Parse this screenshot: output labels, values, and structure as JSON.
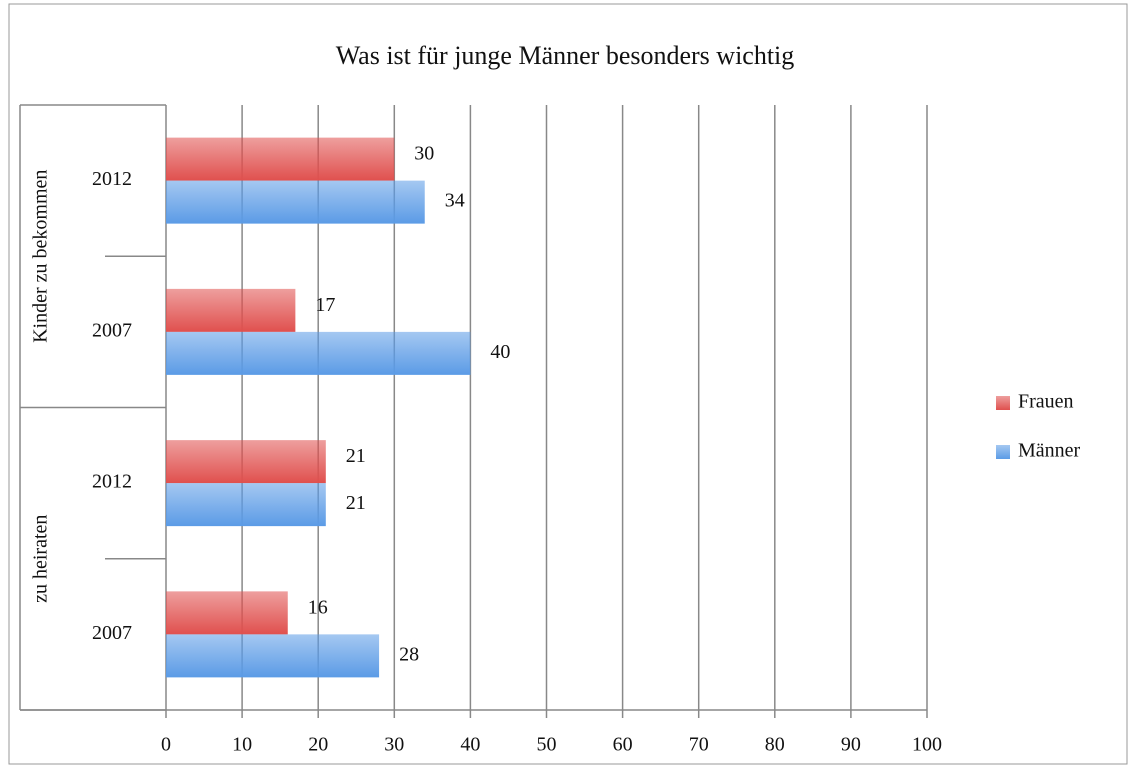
{
  "chart_data": {
    "type": "hbar",
    "title": "Was ist für junge Männer besonders wichtig",
    "groups": [
      {
        "label": "Kinder zu bekommen",
        "categories": [
          "2012",
          "2007"
        ]
      },
      {
        "label": "zu heiraten",
        "categories": [
          "2012",
          "2007"
        ]
      }
    ],
    "series": [
      {
        "name": "Frauen",
        "color": "#e0504e",
        "values": [
          30,
          17,
          21,
          16
        ]
      },
      {
        "name": "Männer",
        "color": "#5b9be6",
        "values": [
          34,
          40,
          21,
          28
        ]
      }
    ],
    "xlim": [
      0,
      100
    ],
    "xticks": [
      0,
      10,
      20,
      30,
      40,
      50,
      60,
      70,
      80,
      90,
      100
    ],
    "grid": true,
    "legend": "right"
  }
}
